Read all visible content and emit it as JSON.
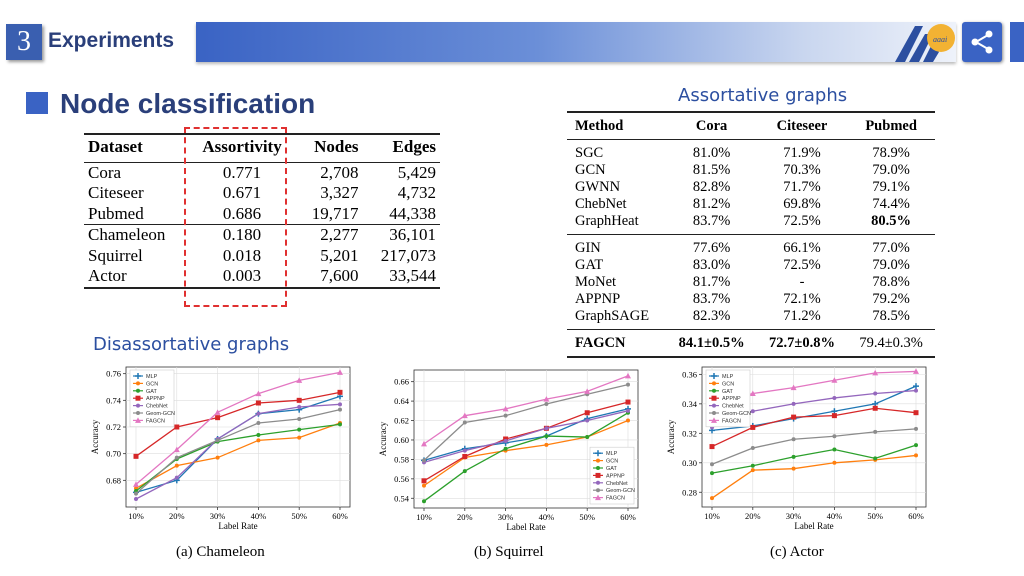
{
  "header": {
    "section_number": "3",
    "section_title": "Experiments",
    "share_label": "share"
  },
  "title": "Node classification",
  "labels": {
    "assortative": "Assortative graphs",
    "disassortative": "Disassortative graphs"
  },
  "dataset_table": {
    "columns": [
      "Dataset",
      "Assortivity",
      "Nodes",
      "Edges"
    ],
    "group1": [
      [
        "Cora",
        "0.771",
        "2,708",
        "5,429"
      ],
      [
        "Citeseer",
        "0.671",
        "3,327",
        "4,732"
      ],
      [
        "Pubmed",
        "0.686",
        "19,717",
        "44,338"
      ]
    ],
    "group2": [
      [
        "Chameleon",
        "0.180",
        "2,277",
        "36,101"
      ],
      [
        "Squirrel",
        "0.018",
        "5,201",
        "217,073"
      ],
      [
        "Actor",
        "0.003",
        "7,600",
        "33,544"
      ]
    ]
  },
  "results_table": {
    "columns": [
      "Method",
      "Cora",
      "Citeseer",
      "Pubmed"
    ],
    "group1": [
      [
        "SGC",
        "81.0%",
        "71.9%",
        "78.9%"
      ],
      [
        "GCN",
        "81.5%",
        "70.3%",
        "79.0%"
      ],
      [
        "GWNN",
        "82.8%",
        "71.7%",
        "79.1%"
      ],
      [
        "ChebNet",
        "81.2%",
        "69.8%",
        "74.4%"
      ],
      [
        "GraphHeat",
        "83.7%",
        "72.5%",
        "80.5%"
      ]
    ],
    "group2": [
      [
        "GIN",
        "77.6%",
        "66.1%",
        "77.0%"
      ],
      [
        "GAT",
        "83.0%",
        "72.5%",
        "79.0%"
      ],
      [
        "MoNet",
        "81.7%",
        "-",
        "78.8%"
      ],
      [
        "APPNP",
        "83.7%",
        "72.1%",
        "79.2%"
      ],
      [
        "GraphSAGE",
        "82.3%",
        "71.2%",
        "78.5%"
      ]
    ],
    "ours": [
      "FAGCN",
      "84.1±0.5%",
      "72.7±0.8%",
      "79.4±0.3%"
    ]
  },
  "chart_data": [
    {
      "type": "line",
      "caption": "(a) Chameleon",
      "xlabel": "Label Rate",
      "ylabel": "Accuracy",
      "categories": [
        "10%",
        "20%",
        "30%",
        "40%",
        "50%",
        "60%"
      ],
      "ylim": [
        0.66,
        0.765
      ],
      "yticks": [
        0.68,
        0.7,
        0.72,
        0.74,
        0.76
      ],
      "legend_pos": "top-left",
      "series": [
        {
          "name": "MLP",
          "color": "#1f77b4",
          "marker": "plus",
          "values": [
            0.671,
            0.68,
            0.711,
            0.73,
            0.733,
            0.743
          ]
        },
        {
          "name": "GCN",
          "color": "#ff7f0e",
          "marker": "dot",
          "values": [
            0.674,
            0.691,
            0.697,
            0.71,
            0.712,
            0.723
          ]
        },
        {
          "name": "GAT",
          "color": "#2ca02c",
          "marker": "dot",
          "values": [
            0.672,
            0.696,
            0.709,
            0.714,
            0.718,
            0.722
          ]
        },
        {
          "name": "APPNP",
          "color": "#d62728",
          "marker": "square",
          "values": [
            0.698,
            0.72,
            0.727,
            0.738,
            0.74,
            0.746
          ]
        },
        {
          "name": "ChebNet",
          "color": "#9467bd",
          "marker": "dot",
          "values": [
            0.666,
            0.682,
            0.711,
            0.73,
            0.735,
            0.737
          ]
        },
        {
          "name": "Geom-GCN",
          "color": "#8c8c8c",
          "marker": "dot",
          "values": [
            0.67,
            0.697,
            0.71,
            0.723,
            0.726,
            0.733
          ]
        },
        {
          "name": "FAGCN",
          "color": "#e377c2",
          "marker": "triangle",
          "values": [
            0.677,
            0.703,
            0.731,
            0.745,
            0.755,
            0.761
          ]
        }
      ]
    },
    {
      "type": "line",
      "caption": "(b) Squirrel",
      "xlabel": "Label Rate",
      "ylabel": "Accuracy",
      "categories": [
        "10%",
        "20%",
        "30%",
        "40%",
        "50%",
        "60%"
      ],
      "ylim": [
        0.53,
        0.672
      ],
      "yticks": [
        0.54,
        0.56,
        0.58,
        0.6,
        0.62,
        0.64,
        0.66
      ],
      "legend_pos": "bottom-right",
      "series": [
        {
          "name": "MLP",
          "color": "#1f77b4",
          "marker": "plus",
          "values": [
            0.579,
            0.591,
            0.597,
            0.604,
            0.622,
            0.632
          ]
        },
        {
          "name": "GCN",
          "color": "#ff7f0e",
          "marker": "dot",
          "values": [
            0.553,
            0.582,
            0.589,
            0.595,
            0.603,
            0.62
          ]
        },
        {
          "name": "GAT",
          "color": "#2ca02c",
          "marker": "dot",
          "values": [
            0.537,
            0.568,
            0.591,
            0.604,
            0.603,
            0.628
          ]
        },
        {
          "name": "APPNP",
          "color": "#d62728",
          "marker": "square",
          "values": [
            0.558,
            0.583,
            0.601,
            0.612,
            0.628,
            0.639
          ]
        },
        {
          "name": "ChebNet",
          "color": "#9467bd",
          "marker": "dot",
          "values": [
            0.577,
            0.589,
            0.599,
            0.612,
            0.62,
            0.63
          ]
        },
        {
          "name": "Geom-GCN",
          "color": "#8c8c8c",
          "marker": "dot",
          "values": [
            0.579,
            0.618,
            0.625,
            0.637,
            0.647,
            0.657
          ]
        },
        {
          "name": "FAGCN",
          "color": "#e377c2",
          "marker": "triangle",
          "values": [
            0.596,
            0.625,
            0.632,
            0.642,
            0.65,
            0.666
          ]
        }
      ]
    },
    {
      "type": "line",
      "caption": "(c) Actor",
      "xlabel": "Label Rate",
      "ylabel": "Accuracy",
      "categories": [
        "10%",
        "20%",
        "30%",
        "40%",
        "50%",
        "60%"
      ],
      "ylim": [
        0.27,
        0.365
      ],
      "yticks": [
        0.28,
        0.3,
        0.32,
        0.34,
        0.36
      ],
      "legend_pos": "top-left",
      "series": [
        {
          "name": "MLP",
          "color": "#1f77b4",
          "marker": "plus",
          "values": [
            0.322,
            0.325,
            0.33,
            0.335,
            0.34,
            0.352
          ]
        },
        {
          "name": "GCN",
          "color": "#ff7f0e",
          "marker": "dot",
          "values": [
            0.276,
            0.295,
            0.296,
            0.3,
            0.302,
            0.305
          ]
        },
        {
          "name": "GAT",
          "color": "#2ca02c",
          "marker": "dot",
          "values": [
            0.293,
            0.298,
            0.304,
            0.309,
            0.303,
            0.312
          ]
        },
        {
          "name": "APPNP",
          "color": "#d62728",
          "marker": "square",
          "values": [
            0.311,
            0.324,
            0.331,
            0.332,
            0.337,
            0.334
          ]
        },
        {
          "name": "ChebNet",
          "color": "#9467bd",
          "marker": "dot",
          "values": [
            0.324,
            0.335,
            0.34,
            0.344,
            0.347,
            0.349
          ]
        },
        {
          "name": "Geom-GCN",
          "color": "#8c8c8c",
          "marker": "dot",
          "values": [
            0.299,
            0.31,
            0.316,
            0.318,
            0.321,
            0.323
          ]
        },
        {
          "name": "FAGCN",
          "color": "#e377c2",
          "marker": "triangle",
          "values": [
            0.34,
            0.347,
            0.351,
            0.356,
            0.361,
            0.362
          ]
        }
      ]
    }
  ]
}
